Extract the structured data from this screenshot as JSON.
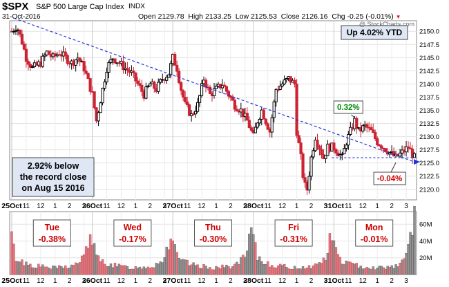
{
  "header": {
    "symbol": "$SPX",
    "name": "S&P 500 Large Cap Index",
    "exchange": "INDX",
    "date": "31-Oct-2016",
    "open_label": "Open",
    "open": "2129.78",
    "high_label": "High",
    "high": "2133.25",
    "low_label": "Low",
    "low": "2125.53",
    "close_label": "Close",
    "close": "2126.16",
    "chg_label": "Chg",
    "chg": "-0.25 (-0.01%)",
    "watermark": "@ StockCharts.com"
  },
  "colors": {
    "up": "#000000",
    "down": "#cc2233",
    "trend": "#2233dd",
    "volume_down": "#e0787e",
    "volume_up": "#909090",
    "label_red": "#cc0000",
    "label_green": "#008800"
  },
  "chart_data": [
    {
      "type": "candlestick",
      "series_name": "$SPX",
      "y_axis_side": "right",
      "ylim": [
        2118,
        2152
      ],
      "y_ticks": [
        2120.0,
        2122.5,
        2125.0,
        2127.5,
        2130.0,
        2132.5,
        2135.0,
        2137.5,
        2140.0,
        2142.5,
        2145.0,
        2147.5,
        2150.0
      ],
      "grid": true,
      "x_tick_labels": [
        {
          "x": 0,
          "label": "25Oct",
          "bold": true
        },
        {
          "x": 14,
          "label": "11"
        },
        {
          "x": 28,
          "label": "12"
        },
        {
          "x": 42,
          "label": "1"
        },
        {
          "x": 56,
          "label": "2"
        },
        {
          "x": 70,
          "label": "3"
        },
        {
          "x": 78,
          "label": "26Oct",
          "bold": true
        },
        {
          "x": 92,
          "label": "11"
        },
        {
          "x": 106,
          "label": "12"
        },
        {
          "x": 120,
          "label": "1"
        },
        {
          "x": 134,
          "label": "2"
        },
        {
          "x": 148,
          "label": "3"
        },
        {
          "x": 156,
          "label": "27Oct",
          "bold": true
        },
        {
          "x": 170,
          "label": "11"
        },
        {
          "x": 184,
          "label": "12"
        },
        {
          "x": 198,
          "label": "1"
        },
        {
          "x": 212,
          "label": "2"
        },
        {
          "x": 226,
          "label": "3"
        },
        {
          "x": 234,
          "label": "28Oct",
          "bold": true
        },
        {
          "x": 248,
          "label": "11"
        },
        {
          "x": 262,
          "label": "12"
        },
        {
          "x": 276,
          "label": "1"
        },
        {
          "x": 290,
          "label": "2"
        },
        {
          "x": 304,
          "label": "3"
        },
        {
          "x": 312,
          "label": "31Oct",
          "bold": true
        },
        {
          "x": 326,
          "label": "11"
        },
        {
          "x": 340,
          "label": "12"
        },
        {
          "x": 354,
          "label": "1"
        },
        {
          "x": 368,
          "label": "2"
        },
        {
          "x": 382,
          "label": "3"
        }
      ],
      "day_boundaries": [
        0,
        78,
        156,
        234,
        312
      ],
      "x_range": [
        -2,
        392
      ],
      "trendline": {
        "from": {
          "x": 2,
          "y": 2152.5
        },
        "to": {
          "x": 390,
          "y": 2125.2
        }
      },
      "support_line": {
        "from": {
          "x": 310,
          "y": 2126.0
        },
        "to": {
          "x": 392,
          "y": 2126.0
        }
      },
      "price_path": [
        {
          "x": 0,
          "y": 2150
        },
        {
          "x": 5,
          "y": 2151
        },
        {
          "x": 10,
          "y": 2148
        },
        {
          "x": 14,
          "y": 2145
        },
        {
          "x": 20,
          "y": 2143
        },
        {
          "x": 28,
          "y": 2144
        },
        {
          "x": 34,
          "y": 2146
        },
        {
          "x": 40,
          "y": 2145
        },
        {
          "x": 46,
          "y": 2146
        },
        {
          "x": 52,
          "y": 2145
        },
        {
          "x": 58,
          "y": 2144
        },
        {
          "x": 64,
          "y": 2145
        },
        {
          "x": 70,
          "y": 2143
        },
        {
          "x": 78,
          "y": 2138
        },
        {
          "x": 82,
          "y": 2133
        },
        {
          "x": 86,
          "y": 2137
        },
        {
          "x": 92,
          "y": 2143
        },
        {
          "x": 98,
          "y": 2145
        },
        {
          "x": 104,
          "y": 2144
        },
        {
          "x": 110,
          "y": 2143
        },
        {
          "x": 116,
          "y": 2142
        },
        {
          "x": 122,
          "y": 2140
        },
        {
          "x": 128,
          "y": 2138
        },
        {
          "x": 134,
          "y": 2140
        },
        {
          "x": 140,
          "y": 2139
        },
        {
          "x": 146,
          "y": 2141
        },
        {
          "x": 152,
          "y": 2142
        },
        {
          "x": 156,
          "y": 2145
        },
        {
          "x": 160,
          "y": 2143
        },
        {
          "x": 164,
          "y": 2139
        },
        {
          "x": 168,
          "y": 2136
        },
        {
          "x": 174,
          "y": 2134
        },
        {
          "x": 180,
          "y": 2136
        },
        {
          "x": 186,
          "y": 2141
        },
        {
          "x": 192,
          "y": 2138
        },
        {
          "x": 198,
          "y": 2139
        },
        {
          "x": 204,
          "y": 2140
        },
        {
          "x": 210,
          "y": 2138
        },
        {
          "x": 216,
          "y": 2136
        },
        {
          "x": 222,
          "y": 2135
        },
        {
          "x": 228,
          "y": 2133
        },
        {
          "x": 234,
          "y": 2130
        },
        {
          "x": 238,
          "y": 2133
        },
        {
          "x": 242,
          "y": 2135
        },
        {
          "x": 246,
          "y": 2133
        },
        {
          "x": 250,
          "y": 2131
        },
        {
          "x": 256,
          "y": 2139
        },
        {
          "x": 262,
          "y": 2140
        },
        {
          "x": 268,
          "y": 2141
        },
        {
          "x": 274,
          "y": 2140
        },
        {
          "x": 276,
          "y": 2131
        },
        {
          "x": 280,
          "y": 2126
        },
        {
          "x": 283,
          "y": 2121
        },
        {
          "x": 286,
          "y": 2120
        },
        {
          "x": 290,
          "y": 2126
        },
        {
          "x": 294,
          "y": 2130
        },
        {
          "x": 298,
          "y": 2128
        },
        {
          "x": 302,
          "y": 2126
        },
        {
          "x": 306,
          "y": 2128
        },
        {
          "x": 312,
          "y": 2128
        },
        {
          "x": 316,
          "y": 2127
        },
        {
          "x": 320,
          "y": 2126
        },
        {
          "x": 324,
          "y": 2129
        },
        {
          "x": 328,
          "y": 2131
        },
        {
          "x": 332,
          "y": 2133
        },
        {
          "x": 336,
          "y": 2131
        },
        {
          "x": 342,
          "y": 2132
        },
        {
          "x": 348,
          "y": 2131
        },
        {
          "x": 354,
          "y": 2129
        },
        {
          "x": 360,
          "y": 2128
        },
        {
          "x": 366,
          "y": 2127
        },
        {
          "x": 372,
          "y": 2126
        },
        {
          "x": 378,
          "y": 2127
        },
        {
          "x": 384,
          "y": 2128
        },
        {
          "x": 390,
          "y": 2126
        }
      ],
      "annotations": [
        {
          "text": "Up 4.02% YTD",
          "style": "boxed",
          "anchor": "top-right"
        },
        {
          "text": "2.92% below the record close on Aug 15 2016",
          "lines": [
            "2.92% below",
            "the record close",
            "on Aug 15 2016"
          ],
          "style": "boxed",
          "anchor": "bottom-left"
        },
        {
          "text": "0.32%",
          "style": "callout-green",
          "at": {
            "x": 332,
            "y": 2133.25
          }
        },
        {
          "text": "-0.04%",
          "style": "callout-red",
          "at": {
            "x": 372,
            "y": 2125.5
          }
        }
      ]
    },
    {
      "type": "bar",
      "series_name": "Volume",
      "y_axis_side": "right",
      "ylim": [
        0,
        75
      ],
      "y_ticks": [
        {
          "value": 20,
          "label": "20M"
        },
        {
          "value": 40,
          "label": "40M"
        },
        {
          "value": 60,
          "label": "60M"
        }
      ],
      "grid": true,
      "x_range": [
        -2,
        392
      ],
      "day_boundaries": [
        0,
        78,
        156,
        234,
        312
      ],
      "volume_profile": [
        {
          "x": 0,
          "y": 45
        },
        {
          "x": 3,
          "y": 22
        },
        {
          "x": 8,
          "y": 16
        },
        {
          "x": 20,
          "y": 11
        },
        {
          "x": 39,
          "y": 8
        },
        {
          "x": 59,
          "y": 10
        },
        {
          "x": 70,
          "y": 20
        },
        {
          "x": 76,
          "y": 48
        },
        {
          "x": 78,
          "y": 45
        },
        {
          "x": 81,
          "y": 22
        },
        {
          "x": 86,
          "y": 16
        },
        {
          "x": 98,
          "y": 11
        },
        {
          "x": 117,
          "y": 8
        },
        {
          "x": 137,
          "y": 10
        },
        {
          "x": 148,
          "y": 20
        },
        {
          "x": 154,
          "y": 48
        },
        {
          "x": 156,
          "y": 45
        },
        {
          "x": 159,
          "y": 22
        },
        {
          "x": 164,
          "y": 16
        },
        {
          "x": 176,
          "y": 11
        },
        {
          "x": 195,
          "y": 8
        },
        {
          "x": 215,
          "y": 10
        },
        {
          "x": 226,
          "y": 20
        },
        {
          "x": 232,
          "y": 48
        },
        {
          "x": 234,
          "y": 45
        },
        {
          "x": 237,
          "y": 22
        },
        {
          "x": 242,
          "y": 16
        },
        {
          "x": 254,
          "y": 11
        },
        {
          "x": 273,
          "y": 8
        },
        {
          "x": 293,
          "y": 10
        },
        {
          "x": 304,
          "y": 20
        },
        {
          "x": 310,
          "y": 48
        },
        {
          "x": 312,
          "y": 45
        },
        {
          "x": 315,
          "y": 22
        },
        {
          "x": 320,
          "y": 16
        },
        {
          "x": 332,
          "y": 11
        },
        {
          "x": 351,
          "y": 8
        },
        {
          "x": 371,
          "y": 10
        },
        {
          "x": 382,
          "y": 20
        },
        {
          "x": 388,
          "y": 65
        },
        {
          "x": 391,
          "y": 70
        }
      ],
      "x_tick_labels": [
        {
          "x": 0,
          "label": "25Oct",
          "bold": true
        },
        {
          "x": 14,
          "label": "11"
        },
        {
          "x": 28,
          "label": "12"
        },
        {
          "x": 42,
          "label": "1"
        },
        {
          "x": 56,
          "label": "2"
        },
        {
          "x": 70,
          "label": "3"
        },
        {
          "x": 78,
          "label": "26Oct",
          "bold": true
        },
        {
          "x": 92,
          "label": "11"
        },
        {
          "x": 106,
          "label": "12"
        },
        {
          "x": 120,
          "label": "1"
        },
        {
          "x": 134,
          "label": "2"
        },
        {
          "x": 148,
          "label": "3"
        },
        {
          "x": 156,
          "label": "27Oct",
          "bold": true
        },
        {
          "x": 170,
          "label": "11"
        },
        {
          "x": 184,
          "label": "12"
        },
        {
          "x": 198,
          "label": "1"
        },
        {
          "x": 212,
          "label": "2"
        },
        {
          "x": 226,
          "label": "3"
        },
        {
          "x": 234,
          "label": "28Oct",
          "bold": true
        },
        {
          "x": 248,
          "label": "11"
        },
        {
          "x": 262,
          "label": "12"
        },
        {
          "x": 276,
          "label": "1"
        },
        {
          "x": 290,
          "label": "2"
        },
        {
          "x": 304,
          "label": "3"
        },
        {
          "x": 312,
          "label": "31Oct",
          "bold": true
        },
        {
          "x": 326,
          "label": "11"
        },
        {
          "x": 340,
          "label": "12"
        },
        {
          "x": 354,
          "label": "1"
        },
        {
          "x": 368,
          "label": "2"
        },
        {
          "x": 382,
          "label": "3"
        }
      ],
      "day_labels": [
        {
          "day": "Tue",
          "change": "-0.38%"
        },
        {
          "day": "Wed",
          "change": "-0.17%"
        },
        {
          "day": "Thu",
          "change": "-0.30%"
        },
        {
          "day": "Fri",
          "change": "-0.31%"
        },
        {
          "day": "Mon",
          "change": "-0.01%"
        }
      ]
    }
  ]
}
